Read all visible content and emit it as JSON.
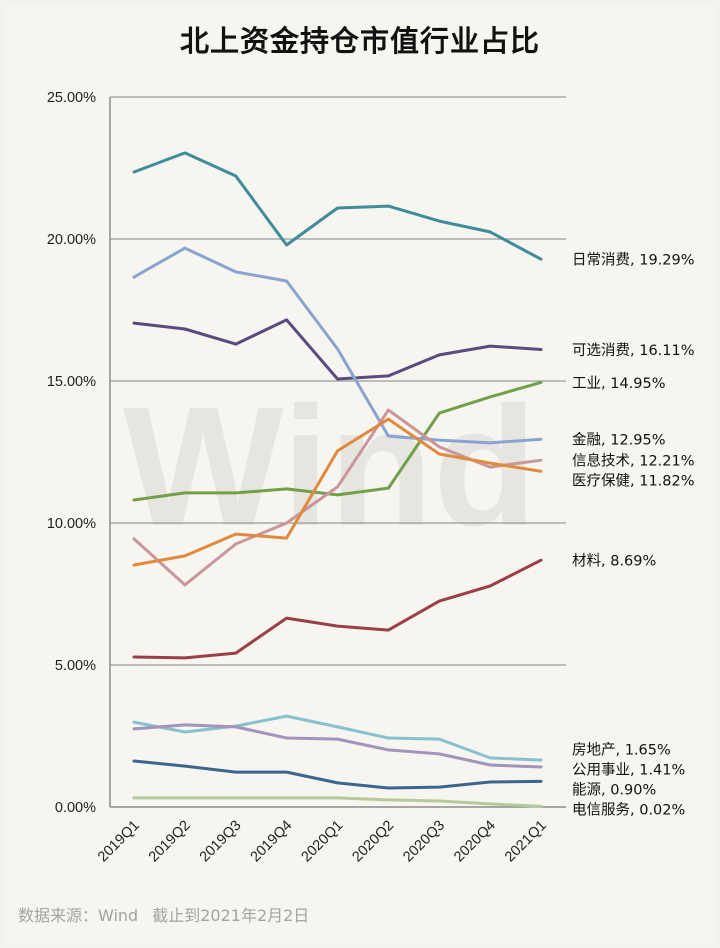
{
  "chart_data": {
    "type": "line",
    "title": "北上资金持仓市值行业占比",
    "xlabel": "",
    "ylabel": "",
    "x": [
      "2019Q1",
      "2019Q2",
      "2019Q3",
      "2019Q4",
      "2020Q1",
      "2020Q2",
      "2020Q3",
      "2020Q4",
      "2021Q1"
    ],
    "ylim": [
      0,
      25
    ],
    "yticks": [
      0,
      5,
      10,
      15,
      20,
      25
    ],
    "ytick_labels": [
      "0.00%",
      "5.00%",
      "10.00%",
      "15.00%",
      "20.00%",
      "25.00%"
    ],
    "grid": "horizontal",
    "legend": "end-of-line labels (right)",
    "watermark": "Wind",
    "series": [
      {
        "name": "日常消费",
        "end_label": "日常消费, 19.29%",
        "color": "#3f8c9a",
        "values": [
          22.36,
          23.03,
          22.22,
          19.79,
          21.09,
          21.16,
          20.63,
          20.25,
          19.29
        ]
      },
      {
        "name": "可选消费",
        "end_label": "可选消费, 16.11%",
        "color": "#5b4a80",
        "values": [
          17.04,
          16.83,
          16.3,
          17.15,
          15.07,
          15.18,
          15.92,
          16.23,
          16.11
        ]
      },
      {
        "name": "工业",
        "end_label": "工业, 14.95%",
        "color": "#72a04a",
        "values": [
          10.81,
          11.06,
          11.06,
          11.2,
          10.99,
          11.23,
          13.87,
          14.44,
          14.95
        ]
      },
      {
        "name": "金融",
        "end_label": "金融, 12.95%",
        "color": "#8ba3cf",
        "values": [
          18.66,
          19.68,
          18.84,
          18.52,
          16.13,
          13.06,
          12.92,
          12.82,
          12.95
        ]
      },
      {
        "name": "信息技术",
        "end_label": "信息技术, 12.21%",
        "color": "#c9969a",
        "values": [
          9.44,
          7.82,
          9.26,
          10.0,
          11.27,
          13.98,
          12.68,
          11.97,
          12.21
        ]
      },
      {
        "name": "医疗保健",
        "end_label": "医疗保健, 11.82%",
        "color": "#df8a3e",
        "values": [
          8.52,
          8.84,
          9.61,
          9.47,
          12.54,
          13.66,
          12.43,
          12.11,
          11.82
        ]
      },
      {
        "name": "材料",
        "end_label": "材料, 8.69%",
        "color": "#9a3f48",
        "values": [
          5.28,
          5.25,
          5.42,
          6.65,
          6.37,
          6.23,
          7.25,
          7.78,
          8.69
        ]
      },
      {
        "name": "房地产",
        "end_label": "房地产, 1.65%",
        "color": "#88c0cf",
        "values": [
          2.99,
          2.64,
          2.85,
          3.2,
          2.82,
          2.43,
          2.39,
          1.73,
          1.65
        ]
      },
      {
        "name": "公用事业",
        "end_label": "公用事业, 1.41%",
        "color": "#a393bd",
        "values": [
          2.75,
          2.89,
          2.82,
          2.43,
          2.39,
          2.01,
          1.87,
          1.48,
          1.41
        ]
      },
      {
        "name": "能源",
        "end_label": "能源, 0.90%",
        "color": "#3d6590",
        "values": [
          1.62,
          1.44,
          1.23,
          1.23,
          0.85,
          0.67,
          0.7,
          0.88,
          0.9
        ]
      },
      {
        "name": "电信服务",
        "end_label": "电信服务, 0.02%",
        "color": "#b7c99a",
        "values": [
          0.32,
          0.32,
          0.32,
          0.32,
          0.32,
          0.25,
          0.21,
          0.11,
          0.02
        ]
      }
    ]
  },
  "footer": {
    "source_label": "数据来源：Wind",
    "cutoff_label": "截止到2021年2月2日"
  }
}
